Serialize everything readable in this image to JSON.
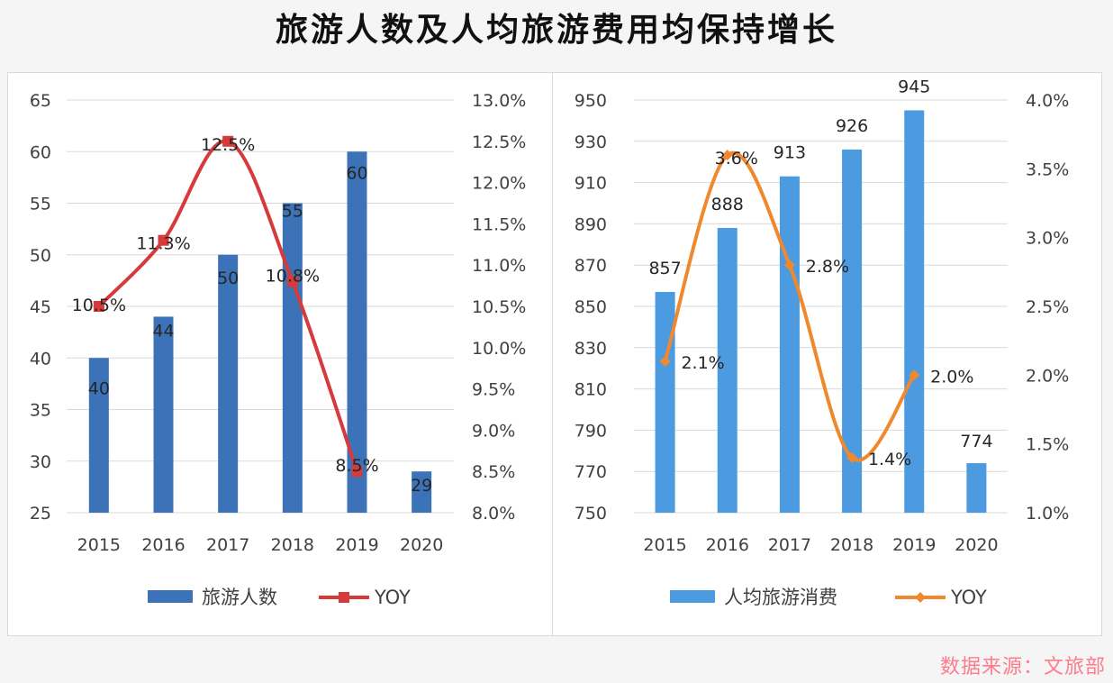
{
  "page": {
    "title": "旅游人数及人均旅游费用均保持增长",
    "source": "数据来源：文旅部"
  },
  "chart_data": [
    {
      "type": "bar",
      "categories": [
        "2015",
        "2016",
        "2017",
        "2018",
        "2019",
        "2020"
      ],
      "series": [
        {
          "name": "旅游人数",
          "kind": "bar",
          "axis": "left",
          "color": "#3c73b8",
          "values": [
            40,
            44,
            50,
            55,
            60,
            29
          ],
          "labels": [
            "40",
            "44",
            "50",
            "55",
            "60",
            "29"
          ]
        },
        {
          "name": "YOY",
          "kind": "line",
          "axis": "right",
          "color": "#d63a3a",
          "marker": "square",
          "values": [
            10.5,
            11.3,
            12.5,
            10.8,
            8.5,
            null
          ],
          "labels": [
            "10.5%",
            "11.3%",
            "12.5%",
            "10.8%",
            "8.5%",
            null
          ]
        }
      ],
      "y_left": {
        "min": 25,
        "max": 65,
        "step": 5,
        "ticks": [
          "25",
          "30",
          "35",
          "40",
          "45",
          "50",
          "55",
          "60",
          "65"
        ]
      },
      "y_right": {
        "min": 8.0,
        "max": 13.0,
        "step": 0.5,
        "ticks": [
          "8.0%",
          "8.5%",
          "9.0%",
          "9.5%",
          "10.0%",
          "10.5%",
          "11.0%",
          "11.5%",
          "12.0%",
          "12.5%",
          "13.0%"
        ]
      },
      "grid": true,
      "legend": "bottom"
    },
    {
      "type": "bar",
      "categories": [
        "2015",
        "2016",
        "2017",
        "2018",
        "2019",
        "2020"
      ],
      "series": [
        {
          "name": "人均旅游消费",
          "kind": "bar",
          "axis": "left",
          "color": "#4c9be0",
          "values": [
            857,
            888,
            913,
            926,
            945,
            774
          ],
          "labels": [
            "857",
            "888",
            "913",
            "926",
            "945",
            "774"
          ]
        },
        {
          "name": "YOY",
          "kind": "line",
          "axis": "right",
          "color": "#f0892e",
          "marker": "diamond",
          "values": [
            2.1,
            3.6,
            2.8,
            1.4,
            2.0,
            null
          ],
          "labels": [
            "2.1%",
            "3.6%",
            "2.8%",
            "1.4%",
            "2.0%",
            null
          ]
        }
      ],
      "y_left": {
        "min": 750,
        "max": 950,
        "step": 20,
        "ticks": [
          "750",
          "770",
          "790",
          "810",
          "830",
          "850",
          "870",
          "890",
          "910",
          "930",
          "950"
        ]
      },
      "y_right": {
        "min": 1.0,
        "max": 4.0,
        "step": 0.5,
        "ticks": [
          "1.0%",
          "1.5%",
          "2.0%",
          "2.5%",
          "3.0%",
          "3.5%",
          "4.0%"
        ]
      },
      "grid": true,
      "legend": "bottom"
    }
  ]
}
